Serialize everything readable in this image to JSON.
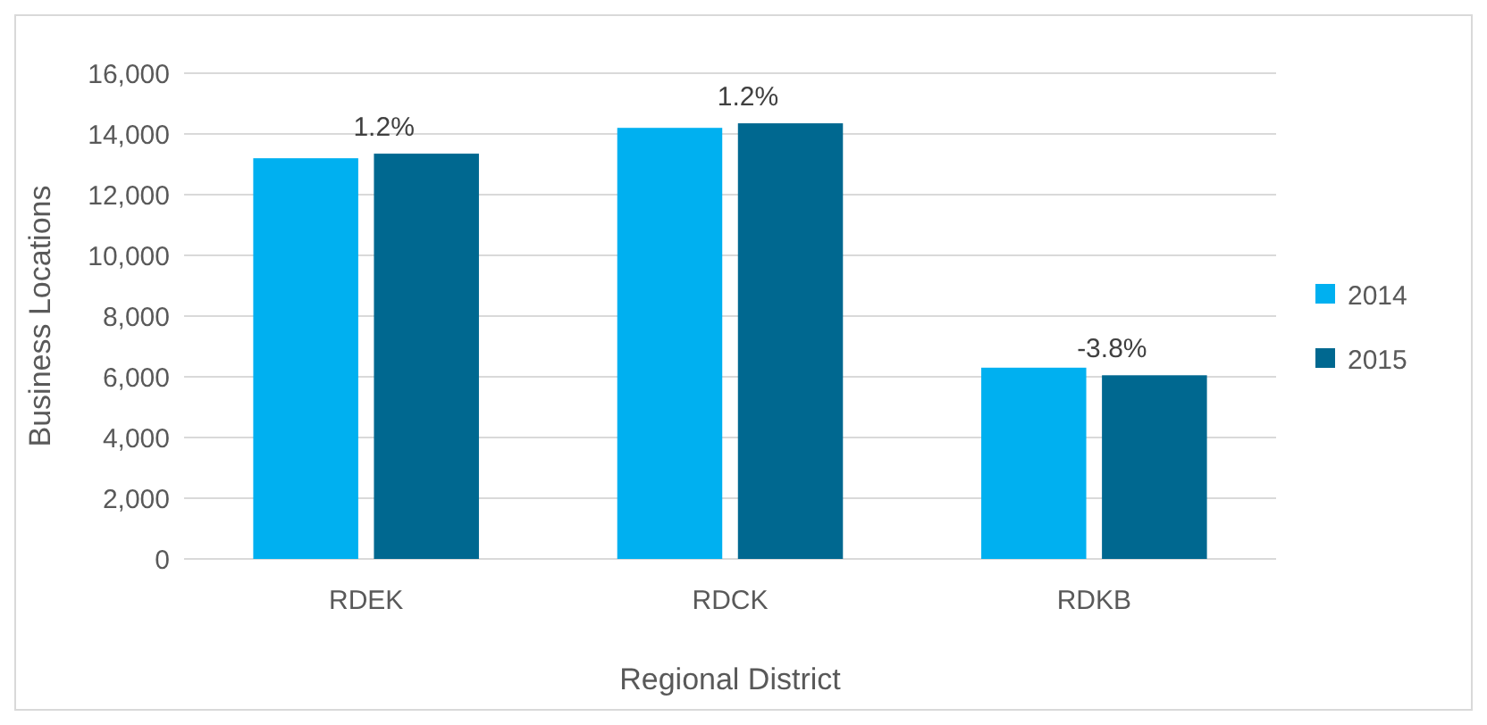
{
  "chart_data": {
    "type": "bar",
    "xlabel": "Regional District",
    "ylabel": "Business Locations",
    "categories": [
      "RDEK",
      "RDCK",
      "RDKB"
    ],
    "series": [
      {
        "name": "2014",
        "color": "#00b0f0",
        "values": [
          13200,
          14200,
          6300
        ]
      },
      {
        "name": "2015",
        "color": "#006890",
        "values": [
          13350,
          14350,
          6050
        ]
      }
    ],
    "ylim": [
      0,
      16000
    ],
    "yticks": [
      {
        "value": 0,
        "label": "0"
      },
      {
        "value": 2000,
        "label": "2,000"
      },
      {
        "value": 4000,
        "label": "4,000"
      },
      {
        "value": 6000,
        "label": "6,000"
      },
      {
        "value": 8000,
        "label": "8,000"
      },
      {
        "value": 10000,
        "label": "10,000"
      },
      {
        "value": 12000,
        "label": "12,000"
      },
      {
        "value": 14000,
        "label": "14,000"
      },
      {
        "value": 16000,
        "label": "16,000"
      }
    ],
    "grid": "y",
    "legend": "right",
    "annotations": [
      {
        "text": "1.2%",
        "x": "RDEK",
        "y": 13350
      },
      {
        "text": "1.2%",
        "x": "RDCK",
        "y": 14350
      },
      {
        "text": "-3.8%",
        "x": "RDKB",
        "y": 6050
      }
    ]
  }
}
